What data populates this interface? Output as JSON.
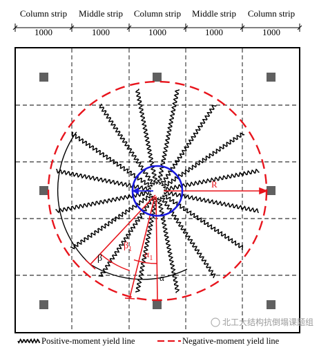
{
  "header": {
    "strips": [
      "Column strip",
      "Middle strip",
      "Column strip",
      "Middle strip",
      "Column strip"
    ],
    "dimensions": [
      "1000",
      "1000",
      "1000",
      "1000",
      "1000"
    ]
  },
  "labels": {
    "R": "R",
    "r": "r",
    "beta": "β",
    "beta1": "β",
    "beta1_sub": "1",
    "alpha1": "α",
    "alpha1_sub": "1",
    "alpha": "α"
  },
  "legend": {
    "positive": "Positive-moment yield line",
    "negative": "Negative-moment yield line"
  },
  "watermark": "北工大结构抗倒塌课题组",
  "colors": {
    "red": "#e8141c",
    "blue": "#1a1adf",
    "black": "#000000",
    "column": "#606060"
  }
}
